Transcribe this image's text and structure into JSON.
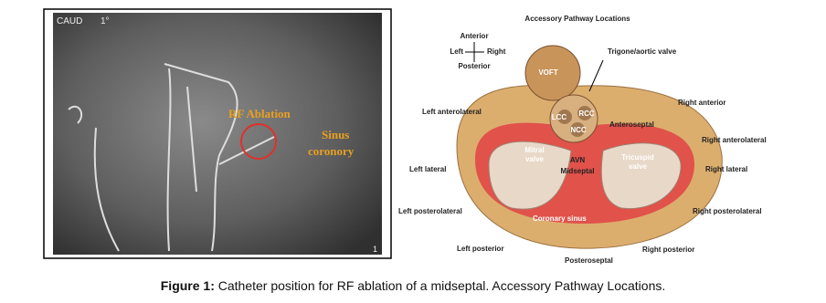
{
  "left_panel": {
    "view_label": "CAUD",
    "angle_label": "1°",
    "annotations": [
      "RF Ablation",
      "Sinus",
      "coronory"
    ],
    "frame_number": "1"
  },
  "right_panel": {
    "title": "Accessory Pathway Locations",
    "compass": {
      "top": "Anterior",
      "left": "Left",
      "right": "Right",
      "bottom": "Posterior"
    },
    "labels": {
      "trigone": "Trigone/aortic valve",
      "voft": "VOFT",
      "lcc": "LCC",
      "rcc": "RCC",
      "ncc": "NCC",
      "anteroseptal": "Anteroseptal",
      "right_anterior": "Right anterior",
      "left_anterolateral": "Left anterolateral",
      "right_anterolateral": "Right anterolateral",
      "mitral_valve": [
        "Mitral",
        "valve"
      ],
      "avn": "AVN",
      "midseptal": "Midseptal",
      "tricuspid_valve": [
        "Tricuspid",
        "valve"
      ],
      "left_lateral": "Left lateral",
      "right_lateral": "Right lateral",
      "left_posterolateral": "Left posterolateral",
      "coronary_sinus": "Coronary sinus",
      "right_posterolateral": "Right posterolateral",
      "left_posterior": "Left posterior",
      "right_posterior": "Right posterior",
      "posteroseptal": "Posteroseptal"
    }
  },
  "caption": {
    "label": "Figure 1:",
    "text": "Catheter position for RF ablation of a midseptal. Accessory Pathway Locations."
  }
}
